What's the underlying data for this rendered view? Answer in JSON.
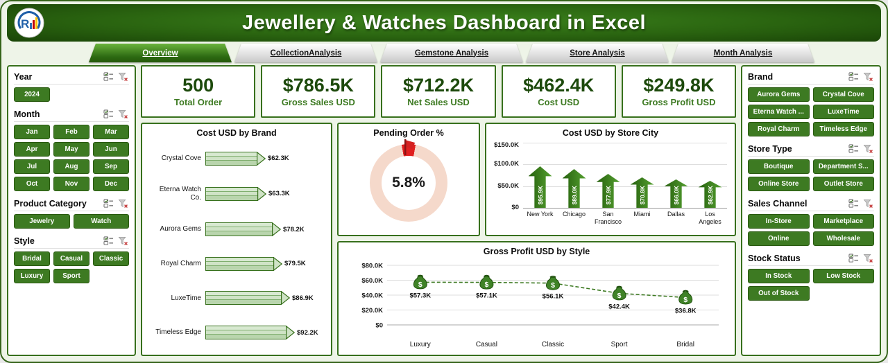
{
  "header": {
    "title": "Jewellery & Watches Dashboard in Excel",
    "logo_letter": "R"
  },
  "tabs": [
    {
      "label": "Overview",
      "active": true
    },
    {
      "label": "CollectionAnalysis",
      "active": false
    },
    {
      "label": "Gemstone Analysis",
      "active": false
    },
    {
      "label": "Store Analysis",
      "active": false
    },
    {
      "label": "Month Analysis",
      "active": false
    }
  ],
  "kpis": [
    {
      "value": "500",
      "label": "Total Order"
    },
    {
      "value": "$786.5K",
      "label": "Gross Sales USD"
    },
    {
      "value": "$712.2K",
      "label": "Net Sales USD"
    },
    {
      "value": "$462.4K",
      "label": "Cost USD"
    },
    {
      "value": "$249.8K",
      "label": "Gross Profit USD"
    }
  ],
  "slicers_left": [
    {
      "id": "year",
      "title": "Year",
      "items": [
        "2024"
      ]
    },
    {
      "id": "month",
      "title": "Month",
      "items": [
        "Jan",
        "Feb",
        "Mar",
        "Apr",
        "May",
        "Jun",
        "Jul",
        "Aug",
        "Sep",
        "Oct",
        "Nov",
        "Dec"
      ]
    },
    {
      "id": "product-category",
      "title": "Product Category",
      "items": [
        "Jewelry",
        "Watch"
      ]
    },
    {
      "id": "style",
      "title": "Style",
      "items": [
        "Bridal",
        "Casual",
        "Classic",
        "Luxury",
        "Sport"
      ]
    }
  ],
  "slicers_right": [
    {
      "id": "brand",
      "title": "Brand",
      "items": [
        "Aurora Gems",
        "Crystal Cove",
        "Eterna Watch ...",
        "LuxeTime",
        "Royal Charm",
        "Timeless Edge"
      ]
    },
    {
      "id": "store-type",
      "title": "Store Type",
      "items": [
        "Boutique",
        "Department S...",
        "Online Store",
        "Outlet Store"
      ]
    },
    {
      "id": "sales-channel",
      "title": "Sales Channel",
      "items": [
        "In-Store",
        "Marketplace",
        "Online",
        "Wholesale"
      ]
    },
    {
      "id": "stock-status",
      "title": "Stock Status",
      "items": [
        "In Stock",
        "Low Stock",
        "Out of Stock"
      ]
    }
  ],
  "chart_data": [
    {
      "id": "cost-by-brand",
      "type": "bar",
      "orientation": "horizontal",
      "title": "Cost USD by Brand",
      "categories": [
        "Crystal Cove",
        "Eterna Watch Co.",
        "Aurora Gems",
        "Royal Charm",
        "LuxeTime",
        "Timeless Edge"
      ],
      "values": [
        62.3,
        63.3,
        78.2,
        79.5,
        86.9,
        92.2
      ],
      "labels": [
        "$62.3K",
        "$63.3K",
        "$78.2K",
        "$79.5K",
        "$86.9K",
        "$92.2K"
      ],
      "unit": "K USD",
      "xlim": [
        0,
        100
      ],
      "grid": false
    },
    {
      "id": "pending-order",
      "type": "pie",
      "title": "Pending Order %",
      "value": 5.8,
      "label": "5.8%",
      "colors": {
        "slice": "#e02020",
        "ring": "#f5d9cb"
      }
    },
    {
      "id": "cost-by-city",
      "type": "bar",
      "orientation": "vertical",
      "title": "Cost USD by Store City",
      "categories": [
        "New York",
        "Chicago",
        "San Francisco",
        "Miami",
        "Dallas",
        "Los Angeles"
      ],
      "values": [
        95.9,
        89.0,
        77.9,
        70.8,
        66.0,
        62.9
      ],
      "labels": [
        "$95.9K",
        "$89.0K",
        "$77.9K",
        "$70.8K",
        "$66.0K",
        "$62.9K"
      ],
      "yticks": [
        0,
        50,
        100,
        150
      ],
      "ytick_labels": [
        "$0",
        "$50.0K",
        "$100.0K",
        "$150.0K"
      ],
      "ylim": [
        0,
        150
      ],
      "grid": true
    },
    {
      "id": "profit-by-style",
      "type": "line",
      "title": "Gross Profit USD by Style",
      "categories": [
        "Luxury",
        "Casual",
        "Classic",
        "Sport",
        "Bridal"
      ],
      "values": [
        57.3,
        57.1,
        56.1,
        42.4,
        36.8
      ],
      "labels": [
        "$57.3K",
        "$57.1K",
        "$56.1K",
        "$42.4K",
        "$36.8K"
      ],
      "yticks": [
        0,
        20,
        40,
        60,
        80
      ],
      "ytick_labels": [
        "$0",
        "$20.0K",
        "$40.0K",
        "$60.0K",
        "$80.0K"
      ],
      "ylim": [
        0,
        80
      ],
      "line_style": "dashed",
      "grid": true
    }
  ],
  "colors": {
    "accent_green": "#3d7a22",
    "dark_green": "#1d4a0c",
    "header_green": "#2a6410",
    "donut_ring": "#f5d9cb",
    "donut_slice": "#e02020",
    "bar_fill_light": "#cfe3c6"
  }
}
